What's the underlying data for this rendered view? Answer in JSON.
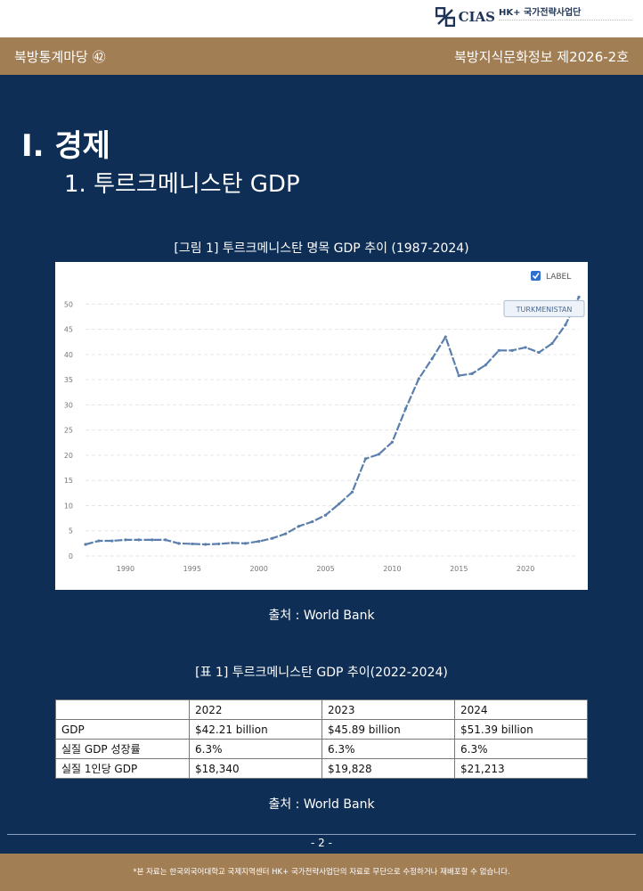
{
  "logo": {
    "text": "CIAS",
    "org": "HK+ 국가전략사업단"
  },
  "header": {
    "left": "북방통계마당 ㊷",
    "right": "북방지식문화정보 제2026-2호"
  },
  "section_title": "Ⅰ. 경제",
  "subsection_title": "1. 투르크메니스탄 GDP",
  "figure_caption": "[그림 1] 투르크메니스탄 명목 GDP 추이 (1987-2024)",
  "chart_data": {
    "type": "line",
    "legend_label": "LABEL",
    "series": [
      {
        "name": "TURKMENISTAN",
        "x": [
          1987,
          1988,
          1989,
          1990,
          1991,
          1992,
          1993,
          1994,
          1995,
          1996,
          1997,
          1998,
          1999,
          2000,
          2001,
          2002,
          2003,
          2004,
          2005,
          2006,
          2007,
          2008,
          2009,
          2010,
          2011,
          2012,
          2013,
          2014,
          2015,
          2016,
          2017,
          2018,
          2019,
          2020,
          2021,
          2022,
          2023,
          2024
        ],
        "values": [
          2.3,
          3.0,
          3.0,
          3.2,
          3.2,
          3.2,
          3.2,
          2.5,
          2.4,
          2.3,
          2.4,
          2.6,
          2.5,
          2.9,
          3.5,
          4.4,
          5.9,
          6.8,
          8.1,
          10.3,
          12.7,
          19.3,
          20.2,
          22.6,
          29.2,
          35.2,
          39.2,
          43.5,
          35.8,
          36.2,
          37.9,
          40.8,
          40.8,
          41.4,
          40.4,
          42.2,
          45.9,
          51.4
        ]
      }
    ],
    "xlim": [
      1987,
      2024
    ],
    "ylim": [
      0,
      52
    ],
    "xticks": [
      1990,
      1995,
      2000,
      2005,
      2010,
      2015,
      2020
    ],
    "yticks": [
      0,
      5,
      10,
      15,
      20,
      25,
      30,
      35,
      40,
      45,
      50
    ],
    "grid": true,
    "legend_placement": "top-right",
    "line_color": "#5b7fad"
  },
  "source": "출처 : World Bank",
  "table_caption": "[표 1] 투르크메니스탄 GDP 추이(2022-2024)",
  "table": {
    "header": [
      "",
      "2022",
      "2023",
      "2024"
    ],
    "rows": [
      [
        "GDP",
        "$42.21 billion",
        "$45.89 billion",
        "$51.39 billion"
      ],
      [
        "실질 GDP 성장률",
        "6.3%",
        "6.3%",
        "6.3%"
      ],
      [
        "실질 1인당 GDP",
        "$18,340",
        "$19,828",
        "$21,213"
      ]
    ]
  },
  "page_number": "- 2 -",
  "footer": "*본 자료는 한국외국어대학교 국제지역센터 HK+ 국가전략사업단의 자료로 무단으로 수정하거나 재배포할 수 없습니다."
}
